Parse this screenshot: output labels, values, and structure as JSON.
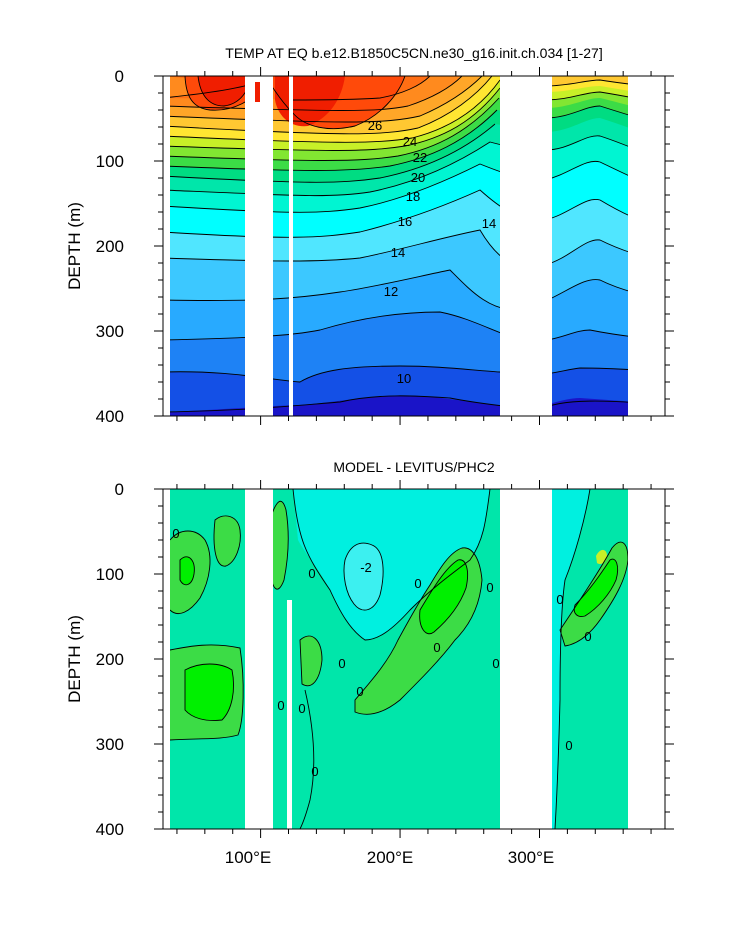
{
  "chart_data": [
    {
      "type": "contour",
      "title": "TEMP AT EQ b.e12.B1850C5CN.ne30_g16.init.ch.034 [1-27]",
      "ylabel": "DEPTH (m)",
      "xlim": [
        30,
        390
      ],
      "ylim": [
        0,
        400
      ],
      "y_inverted": true,
      "y_ticks": [
        "0",
        "100",
        "200",
        "300",
        "400"
      ],
      "x_ticks": [
        "100°E",
        "200°E",
        "300°E"
      ],
      "x_tick_values": [
        100,
        200,
        300
      ],
      "contour_labels": [
        "26",
        "24",
        "22",
        "20",
        "18",
        "16",
        "14",
        "14",
        "12",
        "10"
      ],
      "contour_interval": 1,
      "approx_range": [
        8,
        30
      ],
      "ocean_segments_lon": [
        [
          45,
          97
        ],
        [
          120,
          278
        ],
        [
          315,
          368
        ]
      ],
      "palette": [
        "#1a14c8",
        "#1450e6",
        "#1e82f5",
        "#28aaff",
        "#3cc8ff",
        "#50e6ff",
        "#00ffff",
        "#00f5d2",
        "#00e6aa",
        "#00dc82",
        "#3cdc46",
        "#82e632",
        "#c8f028",
        "#ffe632",
        "#ffc832",
        "#ffa628",
        "#ff8a1e",
        "#ff6e14",
        "#ff4a0a",
        "#f01e00"
      ]
    },
    {
      "type": "contour",
      "title": "MODEL - LEVITUS/PHC2",
      "ylabel": "DEPTH (m)",
      "xlim": [
        30,
        390
      ],
      "ylim": [
        0,
        400
      ],
      "y_inverted": true,
      "y_ticks": [
        "0",
        "100",
        "200",
        "300",
        "400"
      ],
      "x_ticks": [
        "100°E",
        "200°E",
        "300°E"
      ],
      "x_tick_values": [
        100,
        200,
        300
      ],
      "contour_labels": [
        "0",
        "0",
        "-2",
        "0",
        "0",
        "0",
        "0",
        "0",
        "0",
        "0",
        "0",
        "0",
        "0",
        "0",
        "0"
      ],
      "contour_interval": 1,
      "ocean_segments_lon": [
        [
          45,
          97
        ],
        [
          120,
          278
        ],
        [
          315,
          368
        ]
      ],
      "palette": [
        "#00f0e0",
        "#00e6aa",
        "#3cdc46",
        "#00f000",
        "#c8f028"
      ]
    }
  ]
}
